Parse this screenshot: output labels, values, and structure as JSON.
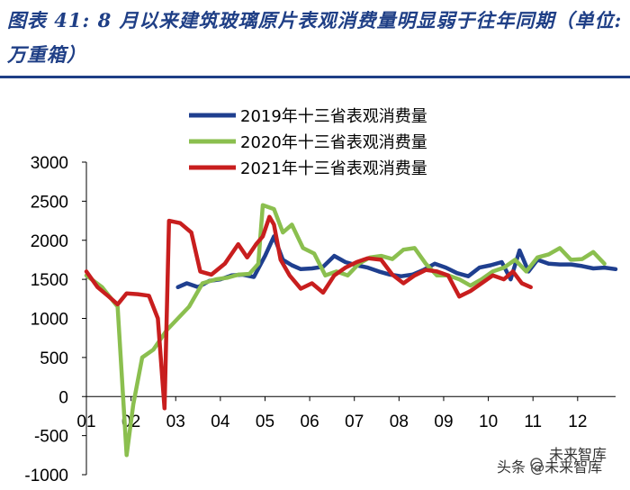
{
  "title": "图表 41:  8 月以来建筑玻璃原片表观消费量明显弱于往年同期（单位: 万重箱）",
  "watermark": {
    "left": "头条 @未来智库",
    "right": "未来智库"
  },
  "colors": {
    "series_2019": "#1f3f8f",
    "series_2020": "#8bbf4f",
    "series_2021": "#c81e1e",
    "title": "#1f3f86"
  },
  "chart_data": {
    "type": "line",
    "title": "",
    "xlabel": "",
    "ylabel": "",
    "ylim": [
      -1000,
      3000
    ],
    "yticks": [
      3000,
      2500,
      2000,
      1500,
      1000,
      500,
      0,
      -500,
      -1000
    ],
    "ytick_labels": [
      "3000",
      "2500",
      "2000",
      "1500",
      "1000",
      "500",
      "0",
      "-500",
      "-1000"
    ],
    "xlim": [
      1,
      12.85
    ],
    "xticks": [
      1,
      2,
      3,
      4,
      5,
      6,
      7,
      8,
      9,
      10,
      11,
      12
    ],
    "xtick_labels": [
      "01",
      "02",
      "03",
      "04",
      "05",
      "06",
      "07",
      "08",
      "09",
      "10",
      "11",
      "12"
    ],
    "legend_position": "top-center",
    "series": [
      {
        "name": "2019年十三省表观消费量",
        "x": [
          3.05,
          3.25,
          3.5,
          3.75,
          4.0,
          4.25,
          4.5,
          4.75,
          5.0,
          5.2,
          5.4,
          5.6,
          5.8,
          6.05,
          6.3,
          6.55,
          6.8,
          7.05,
          7.3,
          7.55,
          7.8,
          8.05,
          8.3,
          8.55,
          8.8,
          9.05,
          9.3,
          9.55,
          9.8,
          10.05,
          10.3,
          10.5,
          10.7,
          10.9,
          11.1,
          11.35,
          11.6,
          11.85,
          12.1,
          12.35,
          12.6,
          12.85
        ],
        "values": [
          1400,
          1450,
          1400,
          1480,
          1500,
          1550,
          1560,
          1530,
          1800,
          2050,
          1750,
          1680,
          1630,
          1640,
          1660,
          1800,
          1720,
          1680,
          1650,
          1600,
          1560,
          1540,
          1560,
          1620,
          1700,
          1650,
          1580,
          1540,
          1650,
          1680,
          1720,
          1500,
          1870,
          1600,
          1750,
          1700,
          1690,
          1690,
          1670,
          1640,
          1650,
          1630
        ]
      },
      {
        "name": "2020年十三省表观消费量",
        "x": [
          1.0,
          1.35,
          1.7,
          1.9,
          2.05,
          2.25,
          2.5,
          2.8,
          3.05,
          3.3,
          3.6,
          3.9,
          4.15,
          4.4,
          4.65,
          4.85,
          4.95,
          5.2,
          5.4,
          5.6,
          5.85,
          6.1,
          6.35,
          6.6,
          6.85,
          7.1,
          7.35,
          7.6,
          7.85,
          8.1,
          8.35,
          8.6,
          8.85,
          9.1,
          9.35,
          9.6,
          9.85,
          10.1,
          10.35,
          10.6,
          10.85,
          11.1,
          11.35,
          11.6,
          11.85,
          12.1,
          12.35,
          12.6
        ],
        "values": [
          1550,
          1400,
          1150,
          -750,
          -100,
          500,
          600,
          850,
          1000,
          1150,
          1450,
          1500,
          1520,
          1560,
          1570,
          1700,
          2450,
          2400,
          2100,
          2200,
          1900,
          1830,
          1550,
          1600,
          1550,
          1700,
          1780,
          1800,
          1760,
          1880,
          1900,
          1700,
          1550,
          1550,
          1500,
          1420,
          1500,
          1600,
          1650,
          1750,
          1600,
          1780,
          1820,
          1900,
          1750,
          1760,
          1850,
          1700
        ]
      },
      {
        "name": "2021年十三省表观消费量",
        "x": [
          1.0,
          1.25,
          1.5,
          1.7,
          1.9,
          2.15,
          2.4,
          2.6,
          2.75,
          2.85,
          3.1,
          3.35,
          3.55,
          3.8,
          4.1,
          4.4,
          4.6,
          4.8,
          4.95,
          5.1,
          5.2,
          5.35,
          5.55,
          5.8,
          6.05,
          6.3,
          6.55,
          6.8,
          7.05,
          7.3,
          7.6,
          7.85,
          8.1,
          8.35,
          8.6,
          8.85,
          9.1,
          9.35,
          9.6,
          9.85,
          10.1,
          10.35,
          10.55,
          10.75,
          10.95
        ],
        "values": [
          1600,
          1400,
          1280,
          1180,
          1320,
          1310,
          1290,
          1000,
          -150,
          2250,
          2220,
          2100,
          1600,
          1560,
          1700,
          1950,
          1780,
          1950,
          2050,
          2300,
          2200,
          1750,
          1550,
          1380,
          1450,
          1330,
          1550,
          1650,
          1720,
          1770,
          1750,
          1560,
          1450,
          1550,
          1620,
          1600,
          1550,
          1280,
          1350,
          1450,
          1550,
          1500,
          1600,
          1450,
          1400
        ]
      }
    ]
  }
}
